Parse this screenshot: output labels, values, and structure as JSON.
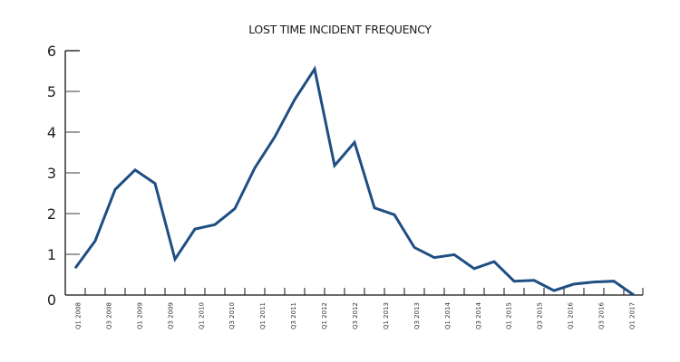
{
  "chart_data": {
    "type": "line",
    "title": "LOST TIME INCIDENT FREQUENCY",
    "xlabel": "",
    "ylabel": "",
    "ylim": [
      0,
      6
    ],
    "yticks": [
      0,
      1,
      2,
      3,
      4,
      5,
      6
    ],
    "grid": false,
    "legend": null,
    "x_tick_labels": [
      "Q1 2008",
      "Q3 2008",
      "Q1 2009",
      "Q3 2009",
      "Q1 2010",
      "Q3 2010",
      "Q1 2011",
      "Q3 2011",
      "Q1 2012",
      "Q3 2012",
      "Q1 2013",
      "Q3 2013",
      "Q1 2014",
      "Q3 2014",
      "Q1 2015",
      "Q3 2015",
      "Q1 2016",
      "Q3 2016",
      "Q1 2017"
    ],
    "series": [
      {
        "name": "Lost Time Incident Frequency",
        "color": "#1f4e82",
        "values": [
          0.66,
          1.33,
          2.59,
          3.07,
          2.74,
          0.88,
          1.62,
          1.73,
          2.12,
          3.12,
          3.88,
          4.8,
          5.55,
          3.18,
          3.75,
          2.14,
          1.97,
          1.17,
          0.92,
          0.99,
          0.65,
          0.82,
          0.34,
          0.36,
          0.11,
          0.27,
          0.32,
          0.34,
          0.0
        ]
      }
    ]
  }
}
